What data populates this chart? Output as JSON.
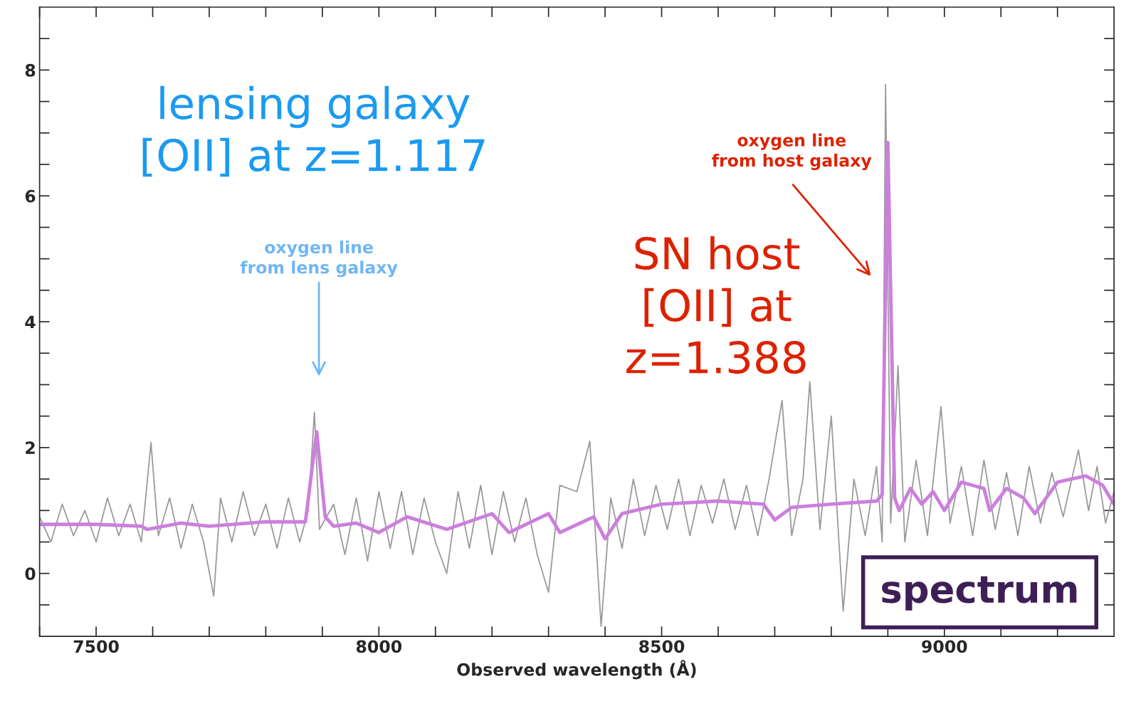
{
  "chart_data": {
    "type": "line",
    "xlabel": "Observed wavelength (Å)",
    "xlim": [
      7400,
      9300
    ],
    "ylim": [
      -1,
      9
    ],
    "xticks": [
      {
        "value": 7400,
        "label": null
      },
      7500,
      {
        "value": 7600,
        "label": null
      },
      {
        "value": 7700,
        "label": null
      },
      {
        "value": 7800,
        "label": null
      },
      {
        "value": 7900,
        "label": null
      },
      8000,
      {
        "value": 8100,
        "label": null
      },
      {
        "value": 8200,
        "label": null
      },
      {
        "value": 8300,
        "label": null
      },
      {
        "value": 8400,
        "label": null
      },
      8500,
      {
        "value": 8600,
        "label": null
      },
      {
        "value": 8700,
        "label": null
      },
      {
        "value": 8800,
        "label": null
      },
      {
        "value": 8900,
        "label": null
      },
      9000,
      {
        "value": 9100,
        "label": null
      },
      {
        "value": 9200,
        "label": null
      }
    ],
    "yticks": [
      {
        "value": -0.5,
        "label": null
      },
      0,
      {
        "value": 0.5,
        "label": null
      },
      {
        "value": 1,
        "label": null
      },
      {
        "value": 1.5,
        "label": null
      },
      2,
      {
        "value": 2.5,
        "label": null
      },
      {
        "value": 3,
        "label": null
      },
      {
        "value": 3.5,
        "label": null
      },
      4,
      {
        "value": 4.5,
        "label": null
      },
      {
        "value": 5,
        "label": null
      },
      {
        "value": 5.5,
        "label": null
      },
      6,
      {
        "value": 6.5,
        "label": null
      },
      {
        "value": 7,
        "label": null
      },
      {
        "value": 7.5,
        "label": null
      },
      8,
      {
        "value": 8.5,
        "label": null
      }
    ],
    "grid": false,
    "series": [
      {
        "color": "#9a9a9a",
        "x": [
          7400,
          7420,
          7440,
          7460,
          7480,
          7500,
          7520,
          7540,
          7560,
          7580,
          7597,
          7610,
          7630,
          7650,
          7670,
          7690,
          7708,
          7720,
          7740,
          7760,
          7780,
          7800,
          7820,
          7840,
          7860,
          7875,
          7886,
          7895,
          7908,
          7920,
          7940,
          7960,
          7980,
          8000,
          8020,
          8040,
          8060,
          8080,
          8100,
          8120,
          8140,
          8160,
          8180,
          8200,
          8220,
          8240,
          8260,
          8280,
          8300,
          8320,
          8336,
          8350,
          8373,
          8393,
          8410,
          8430,
          8450,
          8470,
          8490,
          8510,
          8530,
          8550,
          8570,
          8590,
          8610,
          8630,
          8650,
          8670,
          8690,
          8713,
          8730,
          8750,
          8762,
          8780,
          8800,
          8821,
          8840,
          8860,
          8880,
          8890,
          8896,
          8905,
          8918,
          8930,
          8950,
          8970,
          8994,
          9010,
          9030,
          9050,
          9070,
          9090,
          9110,
          9130,
          9150,
          9170,
          9190,
          9210,
          9237,
          9255,
          9270,
          9285,
          9300
        ],
        "values": [
          0.9,
          0.5,
          1.1,
          0.6,
          1.0,
          0.5,
          1.2,
          0.6,
          1.1,
          0.5,
          2.08,
          0.6,
          1.2,
          0.4,
          1.1,
          0.5,
          -0.36,
          1.2,
          0.5,
          1.3,
          0.6,
          1.1,
          0.4,
          1.2,
          0.5,
          1.0,
          2.56,
          0.7,
          null,
          1.1,
          0.3,
          1.2,
          0.2,
          1.3,
          0.4,
          1.3,
          0.3,
          1.2,
          0.5,
          0.0,
          1.3,
          0.4,
          1.4,
          0.3,
          1.3,
          0.5,
          1.2,
          0.3,
          -0.3,
          1.4,
          null,
          1.3,
          2.1,
          -0.84,
          1.2,
          0.4,
          1.5,
          0.6,
          1.4,
          0.7,
          1.5,
          0.6,
          1.4,
          0.8,
          1.5,
          0.7,
          1.4,
          0.6,
          1.5,
          2.75,
          0.6,
          1.5,
          3.05,
          0.7,
          2.5,
          -0.6,
          1.5,
          0.6,
          1.7,
          0.5,
          7.77,
          0.8,
          3.3,
          0.5,
          1.8,
          0.6,
          2.65,
          0.8,
          1.7,
          0.6,
          1.8,
          0.7,
          1.6,
          0.6,
          1.7,
          0.8,
          1.6,
          0.9,
          1.96,
          1.0,
          1.7,
          0.8,
          1.3
        ]
      },
      {
        "color": "#cc7fdd",
        "x": [
          7400,
          7500,
          7580,
          7590,
          7650,
          7700,
          7800,
          7870,
          7890,
          7905,
          7920,
          7960,
          8000,
          8050,
          8120,
          8200,
          8230,
          8300,
          8320,
          8380,
          8400,
          8430,
          8500,
          8600,
          8680,
          8700,
          8730,
          8800,
          8880,
          8890,
          8900,
          8912,
          8920,
          8940,
          8960,
          8980,
          9000,
          9030,
          9070,
          9080,
          9110,
          9140,
          9160,
          9200,
          9250,
          9280,
          9300
        ],
        "values": [
          0.78,
          0.78,
          0.75,
          0.7,
          0.8,
          0.75,
          0.82,
          0.82,
          2.25,
          0.9,
          0.75,
          0.8,
          0.65,
          0.9,
          0.7,
          0.95,
          0.65,
          0.95,
          0.65,
          0.9,
          0.55,
          0.95,
          1.1,
          1.15,
          1.1,
          0.85,
          1.05,
          1.1,
          1.15,
          1.25,
          6.85,
          1.2,
          1.0,
          1.35,
          1.1,
          1.3,
          1.0,
          1.45,
          1.35,
          1.0,
          1.35,
          1.2,
          0.95,
          1.45,
          1.55,
          1.4,
          1.1
        ]
      }
    ],
    "annotations": [
      "lensing galaxy\n[OII] at z=1.117",
      "oxygen line\nfrom lens galaxy",
      "SN host\n[OII] at\nz=1.388",
      "oxygen line\nfrom host galaxy",
      "spectrum"
    ]
  }
}
